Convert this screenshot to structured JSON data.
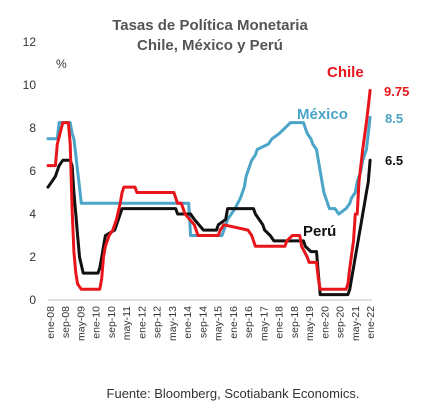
{
  "chart_data": {
    "type": "line",
    "title_line1": "Tasas de Política Monetaria",
    "title_line2": "Chile, México y Perú",
    "unit": "%",
    "ylim": [
      0,
      12
    ],
    "yticks": [
      0,
      2,
      4,
      6,
      8,
      10,
      12
    ],
    "x_tick_labels": [
      "ene-08",
      "sep-08",
      "may-09",
      "ene-10",
      "sep-10",
      "may-11",
      "ene-12",
      "sep-12",
      "may-13",
      "ene-14",
      "sep-14",
      "may-15",
      "ene-16",
      "sep-16",
      "may-17",
      "ene-18",
      "sep-18",
      "may-19",
      "ene-20",
      "sep-20",
      "may-21",
      "ene-22"
    ],
    "series": [
      {
        "name": "Chile",
        "color": "#e8161b",
        "end_label": "9.75",
        "points": [
          [
            "2008-01",
            6.25
          ],
          [
            "2008-05",
            6.25
          ],
          [
            "2008-06",
            7.25
          ],
          [
            "2008-09",
            8.25
          ],
          [
            "2008-12",
            8.25
          ],
          [
            "2009-01",
            7.25
          ],
          [
            "2009-02",
            4.25
          ],
          [
            "2009-03",
            2.25
          ],
          [
            "2009-04",
            1.25
          ],
          [
            "2009-05",
            0.75
          ],
          [
            "2009-07",
            0.5
          ],
          [
            "2010-05",
            0.5
          ],
          [
            "2010-06",
            1.0
          ],
          [
            "2010-07",
            2.0
          ],
          [
            "2010-08",
            2.5
          ],
          [
            "2010-10",
            3.0
          ],
          [
            "2010-12",
            3.25
          ],
          [
            "2011-02",
            3.75
          ],
          [
            "2011-04",
            4.5
          ],
          [
            "2011-05",
            5.0
          ],
          [
            "2011-06",
            5.25
          ],
          [
            "2011-12",
            5.25
          ],
          [
            "2012-01",
            5.0
          ],
          [
            "2013-09",
            5.0
          ],
          [
            "2013-10",
            4.75
          ],
          [
            "2013-11",
            4.5
          ],
          [
            "2014-01",
            4.5
          ],
          [
            "2014-02",
            4.25
          ],
          [
            "2014-03",
            4.0
          ],
          [
            "2014-08",
            3.5
          ],
          [
            "2014-10",
            3.0
          ],
          [
            "2015-09",
            3.0
          ],
          [
            "2015-10",
            3.25
          ],
          [
            "2015-12",
            3.5
          ],
          [
            "2017-01",
            3.25
          ],
          [
            "2017-03",
            3.0
          ],
          [
            "2017-04",
            2.75
          ],
          [
            "2017-05",
            2.5
          ],
          [
            "2018-09",
            2.5
          ],
          [
            "2018-10",
            2.75
          ],
          [
            "2019-01",
            3.0
          ],
          [
            "2019-05",
            3.0
          ],
          [
            "2019-06",
            2.5
          ],
          [
            "2019-09",
            2.0
          ],
          [
            "2019-10",
            1.75
          ],
          [
            "2020-02",
            1.75
          ],
          [
            "2020-03",
            1.0
          ],
          [
            "2020-04",
            0.5
          ],
          [
            "2021-06",
            0.5
          ],
          [
            "2021-07",
            0.75
          ],
          [
            "2021-08",
            1.5
          ],
          [
            "2021-10",
            2.75
          ],
          [
            "2021-11",
            4.0
          ],
          [
            "2021-12",
            4.0
          ],
          [
            "2022-01",
            5.5
          ],
          [
            "2022-03",
            7.0
          ],
          [
            "2022-05",
            8.25
          ],
          [
            "2022-06",
            9.0
          ],
          [
            "2022-07",
            9.75
          ]
        ]
      },
      {
        "name": "México",
        "color": "#4aa5c8",
        "end_label": "8.5",
        "points": [
          [
            "2008-01",
            7.5
          ],
          [
            "2008-06",
            7.5
          ],
          [
            "2008-07",
            8.25
          ],
          [
            "2009-01",
            8.25
          ],
          [
            "2009-02",
            7.75
          ],
          [
            "2009-03",
            7.5
          ],
          [
            "2009-04",
            6.75
          ],
          [
            "2009-05",
            6.0
          ],
          [
            "2009-06",
            5.25
          ],
          [
            "2009-07",
            4.5
          ],
          [
            "2014-05",
            4.5
          ],
          [
            "2014-06",
            3.0
          ],
          [
            "2015-11",
            3.0
          ],
          [
            "2015-12",
            3.25
          ],
          [
            "2016-02",
            3.75
          ],
          [
            "2016-06",
            4.25
          ],
          [
            "2016-09",
            4.75
          ],
          [
            "2016-11",
            5.25
          ],
          [
            "2016-12",
            5.75
          ],
          [
            "2017-02",
            6.25
          ],
          [
            "2017-03",
            6.5
          ],
          [
            "2017-05",
            6.75
          ],
          [
            "2017-06",
            7.0
          ],
          [
            "2017-12",
            7.25
          ],
          [
            "2018-02",
            7.5
          ],
          [
            "2018-06",
            7.75
          ],
          [
            "2018-12",
            8.25
          ],
          [
            "2019-07",
            8.25
          ],
          [
            "2019-08",
            8.0
          ],
          [
            "2019-09",
            7.75
          ],
          [
            "2019-11",
            7.5
          ],
          [
            "2019-12",
            7.25
          ],
          [
            "2020-02",
            7.0
          ],
          [
            "2020-03",
            6.5
          ],
          [
            "2020-04",
            6.0
          ],
          [
            "2020-05",
            5.5
          ],
          [
            "2020-06",
            5.0
          ],
          [
            "2020-08",
            4.5
          ],
          [
            "2020-09",
            4.25
          ],
          [
            "2020-12",
            4.25
          ],
          [
            "2021-02",
            4.0
          ],
          [
            "2021-06",
            4.25
          ],
          [
            "2021-08",
            4.5
          ],
          [
            "2021-09",
            4.75
          ],
          [
            "2021-11",
            5.0
          ],
          [
            "2021-12",
            5.5
          ],
          [
            "2022-02",
            6.0
          ],
          [
            "2022-03",
            6.5
          ],
          [
            "2022-05",
            7.0
          ],
          [
            "2022-06",
            7.75
          ],
          [
            "2022-07",
            8.5
          ]
        ]
      },
      {
        "name": "Perú",
        "color": "#111111",
        "end_label": "6.5",
        "points": [
          [
            "2008-01",
            5.25
          ],
          [
            "2008-03",
            5.5
          ],
          [
            "2008-05",
            5.75
          ],
          [
            "2008-07",
            6.25
          ],
          [
            "2008-09",
            6.5
          ],
          [
            "2009-01",
            6.5
          ],
          [
            "2009-02",
            6.25
          ],
          [
            "2009-03",
            5.0
          ],
          [
            "2009-04",
            4.0
          ],
          [
            "2009-05",
            3.0
          ],
          [
            "2009-06",
            2.0
          ],
          [
            "2009-08",
            1.25
          ],
          [
            "2010-04",
            1.25
          ],
          [
            "2010-05",
            1.5
          ],
          [
            "2010-06",
            2.0
          ],
          [
            "2010-07",
            2.5
          ],
          [
            "2010-08",
            3.0
          ],
          [
            "2011-01",
            3.25
          ],
          [
            "2011-03",
            3.75
          ],
          [
            "2011-05",
            4.25
          ],
          [
            "2013-10",
            4.25
          ],
          [
            "2013-11",
            4.0
          ],
          [
            "2014-06",
            4.0
          ],
          [
            "2014-08",
            3.75
          ],
          [
            "2015-01",
            3.25
          ],
          [
            "2015-08",
            3.25
          ],
          [
            "2015-09",
            3.5
          ],
          [
            "2016-01",
            3.75
          ],
          [
            "2016-02",
            4.25
          ],
          [
            "2017-04",
            4.25
          ],
          [
            "2017-05",
            4.0
          ],
          [
            "2017-07",
            3.75
          ],
          [
            "2017-09",
            3.5
          ],
          [
            "2017-10",
            3.25
          ],
          [
            "2018-01",
            3.0
          ],
          [
            "2018-03",
            2.75
          ],
          [
            "2019-07",
            2.75
          ],
          [
            "2019-08",
            2.5
          ],
          [
            "2019-11",
            2.25
          ],
          [
            "2020-02",
            2.25
          ],
          [
            "2020-03",
            1.25
          ],
          [
            "2020-04",
            0.25
          ],
          [
            "2021-07",
            0.25
          ],
          [
            "2021-08",
            0.5
          ],
          [
            "2021-09",
            1.0
          ],
          [
            "2021-10",
            1.5
          ],
          [
            "2021-11",
            2.0
          ],
          [
            "2021-12",
            2.5
          ],
          [
            "2022-01",
            3.0
          ],
          [
            "2022-02",
            3.5
          ],
          [
            "2022-03",
            4.0
          ],
          [
            "2022-04",
            4.5
          ],
          [
            "2022-05",
            5.0
          ],
          [
            "2022-06",
            5.5
          ],
          [
            "2022-07",
            6.5
          ]
        ]
      }
    ],
    "source": "Fuente: Bloomberg, Scotiabank Economics."
  }
}
